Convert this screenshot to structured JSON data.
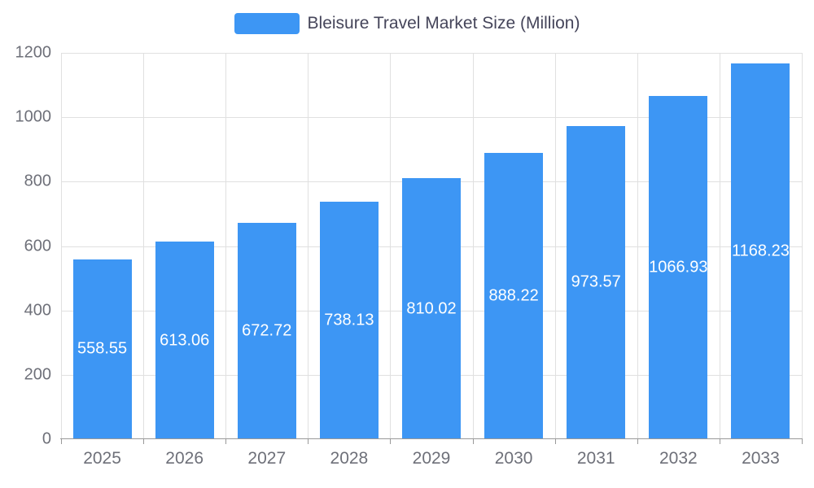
{
  "legend": {
    "label": "Bleisure Travel Market Size (Million)",
    "swatch_color": "#3d96f4"
  },
  "chart_data": {
    "type": "bar",
    "title": "Bleisure Travel Market Size (Million)",
    "categories": [
      "2025",
      "2026",
      "2027",
      "2028",
      "2029",
      "2030",
      "2031",
      "2032",
      "2033"
    ],
    "values": [
      558.55,
      613.06,
      672.72,
      738.13,
      810.02,
      888.22,
      973.57,
      1066.93,
      1168.23
    ],
    "value_labels": [
      "558.55",
      "613.06",
      "672.72",
      "738.13",
      "810.02",
      "888.22",
      "973.57",
      "1066.93",
      "1168.23"
    ],
    "xlabel": "",
    "ylabel": "",
    "ylim": [
      0,
      1200
    ],
    "yticks": [
      0,
      200,
      400,
      600,
      800,
      1000,
      1200
    ],
    "grid": true,
    "legend_position": "top",
    "bar_color": "#3d96f4",
    "label_color": "#ffffff",
    "grid_color": "#e0e0e0",
    "axis_color": "#999999",
    "tick_text_color": "#6e7079"
  }
}
